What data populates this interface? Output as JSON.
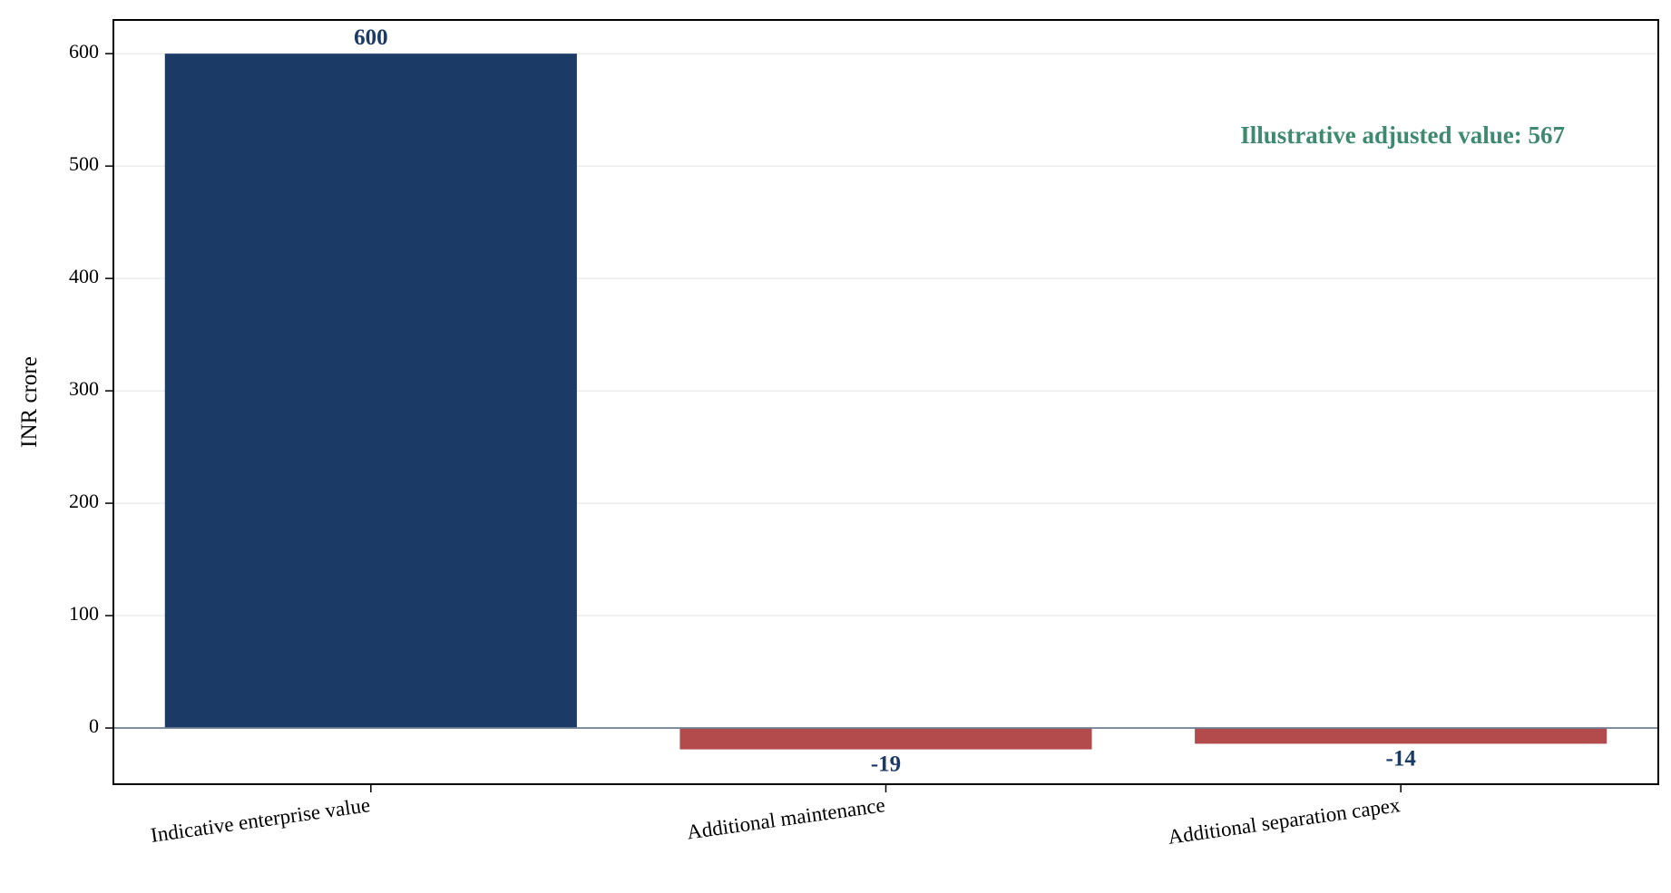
{
  "chart_data": {
    "type": "bar",
    "categories": [
      "Indicative enterprise value",
      "Additional maintenance",
      "Additional separation capex"
    ],
    "values": [
      600,
      -19,
      -14
    ],
    "value_labels": [
      "600",
      "-19",
      "-14"
    ],
    "title": "",
    "xlabel": "",
    "ylabel": "INR crore",
    "ylim": [
      -50,
      630
    ],
    "yticks": [
      0,
      100,
      200,
      300,
      400,
      500,
      600
    ],
    "ytick_labels": [
      "0",
      "100",
      "200",
      "300",
      "400",
      "500",
      "600"
    ],
    "grid": "horizontal",
    "annotation": "Illustrative adjusted value: 567",
    "annotation_position": "top-right",
    "colors": {
      "positive": "#1b3a66",
      "negative": "#b34a4c",
      "label": "#1b3a66",
      "annotation": "#3e8a6e",
      "zero_line": "#6e7f91",
      "grid": "#ececec"
    }
  }
}
